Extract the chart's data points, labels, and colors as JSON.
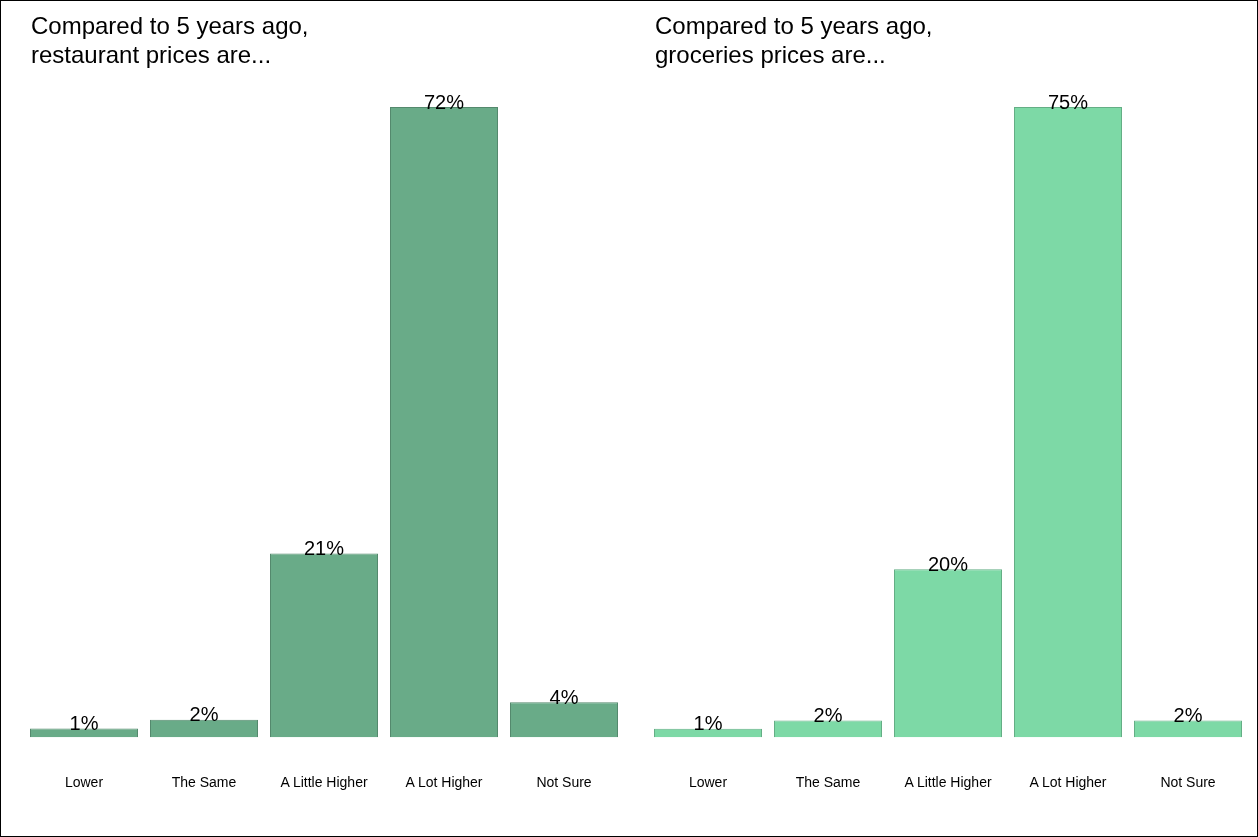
{
  "chart_data": [
    {
      "type": "bar",
      "title": "Compared to 5 years ago, restaurant prices are...",
      "categories": [
        "Lower",
        "The Same",
        "A Little Higher",
        "A Lot Higher",
        "Not Sure"
      ],
      "values": [
        1,
        2,
        21,
        72,
        4
      ],
      "value_labels": [
        "1%",
        "2%",
        "21%",
        "72%",
        "4%"
      ],
      "color": "#69ab88"
    },
    {
      "type": "bar",
      "title": "Compared to 5 years ago, groceries prices are...",
      "categories": [
        "Lower",
        "The Same",
        "A Little Higher",
        "A Lot Higher",
        "Not Sure"
      ],
      "values": [
        1,
        2,
        20,
        75,
        2
      ],
      "value_labels": [
        "1%",
        "2%",
        "20%",
        "75%",
        "2%"
      ],
      "color": "#7dd9a6"
    }
  ]
}
